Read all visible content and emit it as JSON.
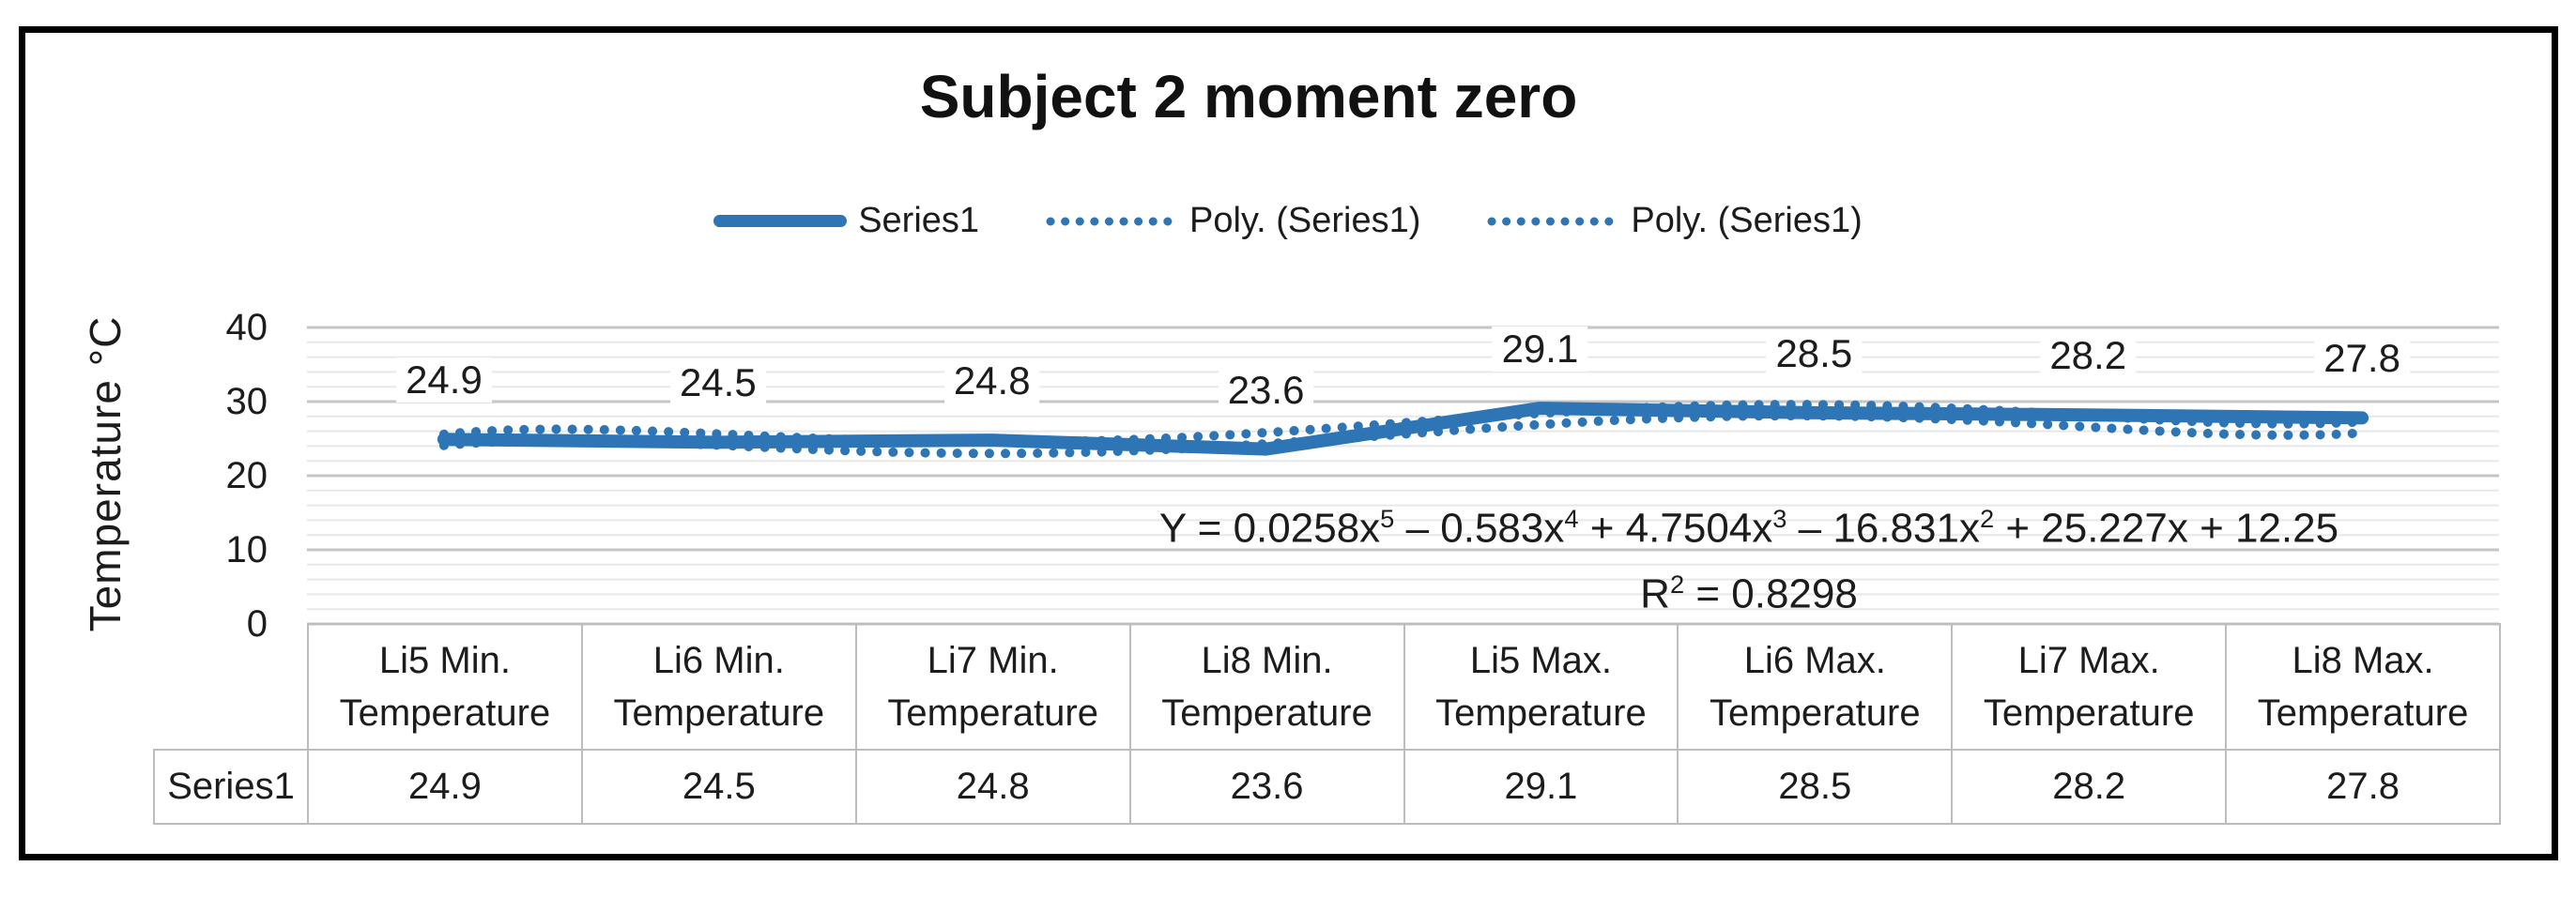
{
  "figure_title": "Subject 2 moment zero",
  "legend": {
    "items": [
      {
        "label": "Series1",
        "marker": "solid-line"
      },
      {
        "label": "Poly. (Series1)",
        "marker": "dotted-line"
      },
      {
        "label": "Poly. (Series1)",
        "marker": "dotted-line"
      }
    ]
  },
  "y_axis": {
    "title": "Temperature °C",
    "tick_labels": [
      "40",
      "30",
      "20",
      "10",
      "0"
    ],
    "min": 0,
    "max": 40,
    "major_step": 10,
    "minor_step": 2
  },
  "annotation": {
    "equation_segments": [
      {
        "t": "Y = 0.0258x"
      },
      {
        "s": "5"
      },
      {
        "t": " – 0.583x"
      },
      {
        "s": "4"
      },
      {
        "t": " + 4.7504x"
      },
      {
        "s": "3"
      },
      {
        "t": " – 16.831x"
      },
      {
        "s": "2"
      },
      {
        "t": " + 25.227x + 12.25"
      }
    ],
    "r2_segments": [
      {
        "t": "R"
      },
      {
        "s": "2"
      },
      {
        "t": " = 0.8298"
      }
    ]
  },
  "chart_data": {
    "type": "line",
    "title": "Subject 2 moment zero",
    "categories": [
      "Li5 Min. Temperature",
      "Li6 Min. Temperature",
      "Li7 Min. Temperature",
      "Li8 Min. Temperature",
      "Li5 Max. Temperature",
      "Li6 Max. Temperature",
      "Li7 Max. Temperature",
      "Li8 Max. Temperature"
    ],
    "series": [
      {
        "name": "Series1",
        "values": [
          24.9,
          24.5,
          24.8,
          23.6,
          29.1,
          28.5,
          28.2,
          27.8
        ]
      }
    ],
    "data_labels": [
      "24.9",
      "24.5",
      "24.8",
      "23.6",
      "29.1",
      "28.5",
      "28.2",
      "27.8"
    ],
    "trendlines": [
      {
        "name": "Poly. (Series1)",
        "type": "polynomial",
        "order": 5,
        "coefficients": [
          0.0258,
          -0.583,
          4.7504,
          -16.831,
          25.227,
          12.25
        ],
        "r_squared": 0.8298
      },
      {
        "name": "Poly. (Series1)",
        "type": "polynomial",
        "order": 5,
        "coefficients": [
          0.0258,
          -0.583,
          4.7504,
          -16.831,
          25.227,
          12.25
        ],
        "r_squared": 0.8298
      }
    ],
    "xlabel": "",
    "ylabel": "Temperature °C",
    "ylim": [
      0,
      40
    ],
    "legend_position": "top",
    "grid": {
      "major": true,
      "minor": true
    }
  },
  "table": {
    "row_header": "Series1",
    "column_headers": [
      {
        "line1": "Li5 Min.",
        "line2": "Temperature"
      },
      {
        "line1": "Li6 Min.",
        "line2": "Temperature"
      },
      {
        "line1": "Li7 Min.",
        "line2": "Temperature"
      },
      {
        "line1": "Li8 Min.",
        "line2": "Temperature"
      },
      {
        "line1": "Li5 Max.",
        "line2": "Temperature"
      },
      {
        "line1": "Li6 Max.",
        "line2": "Temperature"
      },
      {
        "line1": "Li7 Max.",
        "line2": "Temperature"
      },
      {
        "line1": "Li8 Max.",
        "line2": "Temperature"
      }
    ],
    "values": [
      "24.9",
      "24.5",
      "24.8",
      "23.6",
      "29.1",
      "28.5",
      "28.2",
      "27.8"
    ]
  },
  "colors": {
    "series": "#2E75B6",
    "trendline": "#2E75B6",
    "major_grid": "#C6C6C6",
    "minor_grid": "#E8E8E8",
    "table_border": "#BDBDBD",
    "text": "#1C1C1C",
    "frame_border": "#000000"
  }
}
